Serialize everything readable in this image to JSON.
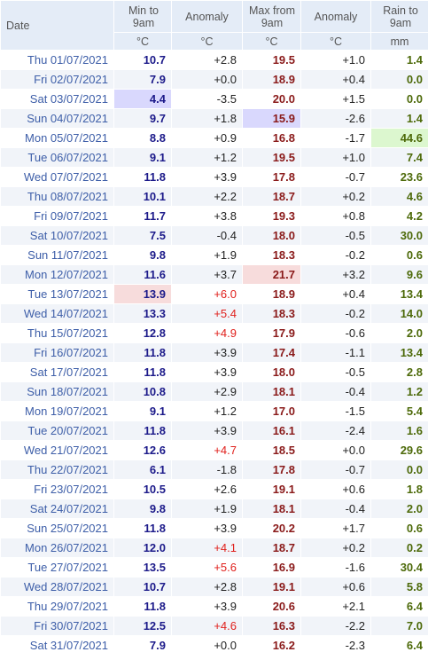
{
  "table": {
    "columns": [
      {
        "title": "Date"
      },
      {
        "title": "Min to 9am",
        "unit": "°C"
      },
      {
        "title": "Anomaly",
        "unit": "°C"
      },
      {
        "title": "Max from 9am",
        "unit": "°C"
      },
      {
        "title": "Anomaly",
        "unit": "°C"
      },
      {
        "title": "Rain to 9am",
        "unit": "mm"
      }
    ],
    "rows": [
      [
        "Thu 01/07/2021",
        "10.7",
        "+2.8",
        "19.5",
        "+1.0",
        "1.4"
      ],
      [
        "Fri 02/07/2021",
        "7.9",
        "+0.0",
        "18.9",
        "+0.4",
        "0.0"
      ],
      [
        "Sat 03/07/2021",
        "4.4",
        "-3.5",
        "20.0",
        "+1.5",
        "0.0"
      ],
      [
        "Sun 04/07/2021",
        "9.7",
        "+1.8",
        "15.9",
        "-2.6",
        "1.4"
      ],
      [
        "Mon 05/07/2021",
        "8.8",
        "+0.9",
        "16.8",
        "-1.7",
        "44.6"
      ],
      [
        "Tue 06/07/2021",
        "9.1",
        "+1.2",
        "19.5",
        "+1.0",
        "7.4"
      ],
      [
        "Wed 07/07/2021",
        "11.8",
        "+3.9",
        "17.8",
        "-0.7",
        "23.6"
      ],
      [
        "Thu 08/07/2021",
        "10.1",
        "+2.2",
        "18.7",
        "+0.2",
        "4.6"
      ],
      [
        "Fri 09/07/2021",
        "11.7",
        "+3.8",
        "19.3",
        "+0.8",
        "4.2"
      ],
      [
        "Sat 10/07/2021",
        "7.5",
        "-0.4",
        "18.0",
        "-0.5",
        "30.0"
      ],
      [
        "Sun 11/07/2021",
        "9.8",
        "+1.9",
        "18.3",
        "-0.2",
        "0.6"
      ],
      [
        "Mon 12/07/2021",
        "11.6",
        "+3.7",
        "21.7",
        "+3.2",
        "9.6"
      ],
      [
        "Tue 13/07/2021",
        "13.9",
        "+6.0",
        "18.9",
        "+0.4",
        "13.4"
      ],
      [
        "Wed 14/07/2021",
        "13.3",
        "+5.4",
        "18.3",
        "-0.2",
        "14.0"
      ],
      [
        "Thu 15/07/2021",
        "12.8",
        "+4.9",
        "17.9",
        "-0.6",
        "2.0"
      ],
      [
        "Fri 16/07/2021",
        "11.8",
        "+3.9",
        "17.4",
        "-1.1",
        "13.4"
      ],
      [
        "Sat 17/07/2021",
        "11.8",
        "+3.9",
        "18.0",
        "-0.5",
        "2.8"
      ],
      [
        "Sun 18/07/2021",
        "10.8",
        "+2.9",
        "18.1",
        "-0.4",
        "1.2"
      ],
      [
        "Mon 19/07/2021",
        "9.1",
        "+1.2",
        "17.0",
        "-1.5",
        "5.4"
      ],
      [
        "Tue 20/07/2021",
        "11.8",
        "+3.9",
        "16.1",
        "-2.4",
        "1.6"
      ],
      [
        "Wed 21/07/2021",
        "12.6",
        "+4.7",
        "18.5",
        "+0.0",
        "29.6"
      ],
      [
        "Thu 22/07/2021",
        "6.1",
        "-1.8",
        "17.8",
        "-0.7",
        "0.0"
      ],
      [
        "Fri 23/07/2021",
        "10.5",
        "+2.6",
        "19.1",
        "+0.6",
        "1.8"
      ],
      [
        "Sat 24/07/2021",
        "9.8",
        "+1.9",
        "18.1",
        "-0.4",
        "2.0"
      ],
      [
        "Sun 25/07/2021",
        "11.8",
        "+3.9",
        "20.2",
        "+1.7",
        "0.6"
      ],
      [
        "Mon 26/07/2021",
        "12.0",
        "+4.1",
        "18.7",
        "+0.2",
        "0.2"
      ],
      [
        "Tue 27/07/2021",
        "13.5",
        "+5.6",
        "16.9",
        "-1.6",
        "30.4"
      ],
      [
        "Wed 28/07/2021",
        "10.7",
        "+2.8",
        "19.1",
        "+0.6",
        "5.8"
      ],
      [
        "Thu 29/07/2021",
        "11.8",
        "+3.9",
        "20.6",
        "+2.1",
        "6.4"
      ],
      [
        "Fri 30/07/2021",
        "12.5",
        "+4.6",
        "16.3",
        "-2.2",
        "7.0"
      ],
      [
        "Sat 31/07/2021",
        "7.9",
        "+0.0",
        "16.2",
        "-2.3",
        "6.4"
      ]
    ]
  }
}
